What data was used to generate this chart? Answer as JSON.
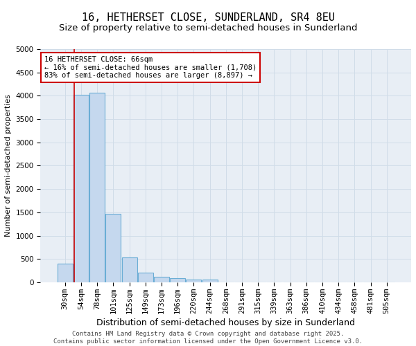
{
  "title": "16, HETHERSET CLOSE, SUNDERLAND, SR4 8EU",
  "subtitle": "Size of property relative to semi-detached houses in Sunderland",
  "xlabel": "Distribution of semi-detached houses by size in Sunderland",
  "ylabel": "Number of semi-detached properties",
  "categories": [
    "30sqm",
    "54sqm",
    "78sqm",
    "101sqm",
    "125sqm",
    "149sqm",
    "173sqm",
    "196sqm",
    "220sqm",
    "244sqm",
    "268sqm",
    "291sqm",
    "315sqm",
    "339sqm",
    "363sqm",
    "386sqm",
    "410sqm",
    "434sqm",
    "458sqm",
    "481sqm",
    "505sqm"
  ],
  "values": [
    400,
    4020,
    4060,
    1470,
    530,
    200,
    120,
    90,
    60,
    60,
    0,
    0,
    0,
    0,
    0,
    0,
    0,
    0,
    0,
    0,
    0
  ],
  "bar_color": "#c5d8ee",
  "bar_edge_color": "#6aadd5",
  "grid_color": "#d0dce8",
  "bg_color": "#e8eef5",
  "annotation_text": "16 HETHERSET CLOSE: 66sqm\n← 16% of semi-detached houses are smaller (1,708)\n83% of semi-detached houses are larger (8,897) →",
  "annotation_box_color": "white",
  "annotation_box_edge_color": "#cc0000",
  "vline_x": 0.575,
  "vline_color": "#cc0000",
  "ylim": [
    0,
    5000
  ],
  "yticks": [
    0,
    500,
    1000,
    1500,
    2000,
    2500,
    3000,
    3500,
    4000,
    4500,
    5000
  ],
  "footer": "Contains HM Land Registry data © Crown copyright and database right 2025.\nContains public sector information licensed under the Open Government Licence v3.0.",
  "title_fontsize": 11,
  "subtitle_fontsize": 9.5,
  "xlabel_fontsize": 9,
  "ylabel_fontsize": 8,
  "tick_fontsize": 7.5,
  "annotation_fontsize": 7.5,
  "footer_fontsize": 6.5
}
